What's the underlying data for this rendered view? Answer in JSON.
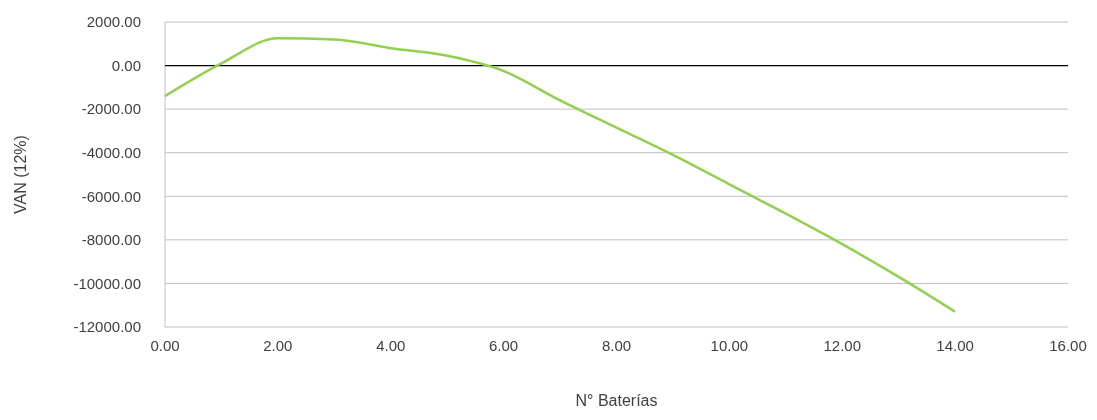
{
  "chart_data": {
    "type": "line",
    "xlabel": "N° Baterías",
    "ylabel": "VAN (12%)",
    "x": [
      0,
      1,
      2,
      3,
      4,
      5,
      6,
      7,
      8,
      9,
      10,
      11,
      12,
      13,
      14
    ],
    "series": [
      {
        "color": "#92d050",
        "values": [
          -1400,
          100,
          1250,
          1200,
          800,
          450,
          -250,
          -1600,
          -2850,
          -4100,
          -5450,
          -6800,
          -8200,
          -9700,
          -11300
        ]
      }
    ],
    "xlim": [
      0,
      16
    ],
    "xticks": [
      {
        "value": 0,
        "label": "0.00"
      },
      {
        "value": 2,
        "label": "2.00"
      },
      {
        "value": 4,
        "label": "4.00"
      },
      {
        "value": 6,
        "label": "6.00"
      },
      {
        "value": 8,
        "label": "8.00"
      },
      {
        "value": 10,
        "label": "10.00"
      },
      {
        "value": 12,
        "label": "12.00"
      },
      {
        "value": 14,
        "label": "14.00"
      },
      {
        "value": 16,
        "label": "16.00"
      }
    ],
    "ylim": [
      -12000,
      2000
    ],
    "yticks": [
      {
        "value": -12000,
        "label": "-12000.00"
      },
      {
        "value": -10000,
        "label": "-10000.00"
      },
      {
        "value": -8000,
        "label": "-8000.00"
      },
      {
        "value": -6000,
        "label": "-6000.00"
      },
      {
        "value": -4000,
        "label": "-4000.00"
      },
      {
        "value": -2000,
        "label": "-2000.00"
      },
      {
        "value": 0,
        "label": "0.00"
      },
      {
        "value": 2000,
        "label": "2000.00"
      }
    ],
    "grid": "y",
    "ref_lines": [
      {
        "axis": "y",
        "value": 0,
        "color": "#000000"
      }
    ],
    "marker": "none",
    "line_style": "solid"
  }
}
